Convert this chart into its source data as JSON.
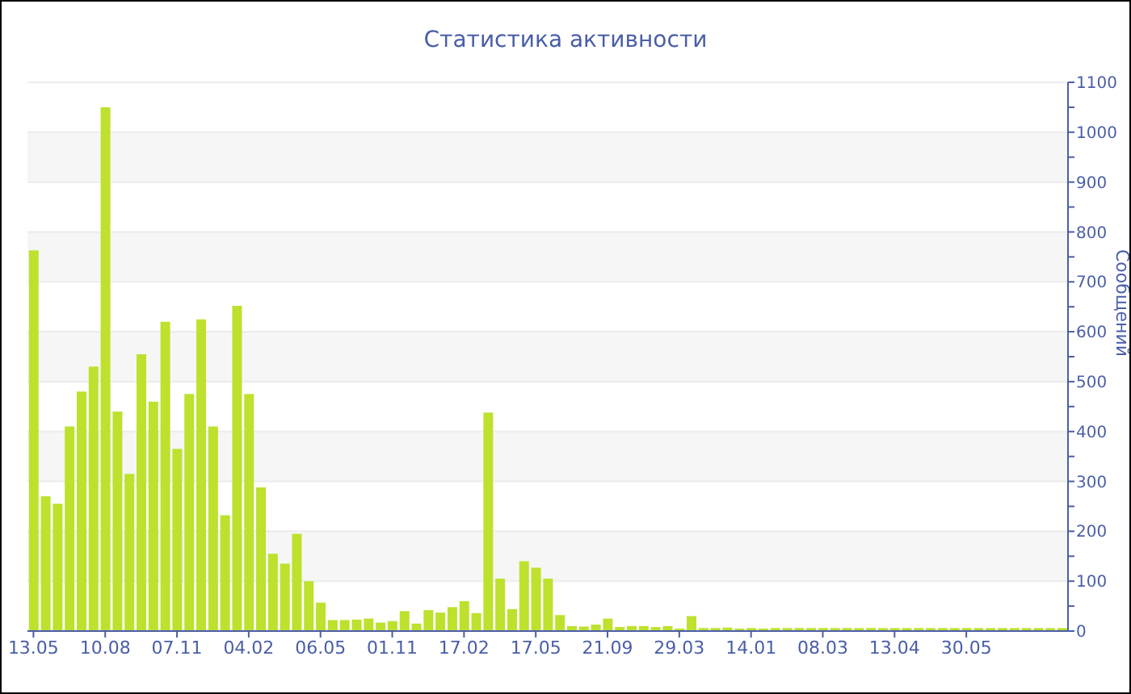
{
  "chart_data": {
    "type": "bar",
    "title": "Статистика активности",
    "ylabel": "Сообщений",
    "categories": [
      "13.05",
      null,
      null,
      null,
      null,
      null,
      "10.08",
      null,
      null,
      null,
      null,
      null,
      "07.11",
      null,
      null,
      null,
      null,
      null,
      "04.02",
      null,
      null,
      null,
      null,
      null,
      "06.05",
      null,
      null,
      null,
      null,
      null,
      "01.11",
      null,
      null,
      null,
      null,
      null,
      "17.02",
      null,
      null,
      null,
      null,
      null,
      "17.05",
      null,
      null,
      null,
      null,
      null,
      "21.09",
      null,
      null,
      null,
      null,
      null,
      "29.03",
      null,
      null,
      null,
      null,
      null,
      "14.01",
      null,
      null,
      null,
      null,
      null,
      "08.03",
      null,
      null,
      null,
      null,
      null,
      "13.04",
      null,
      null,
      null,
      null,
      null,
      "30.05",
      null,
      null,
      null,
      null,
      null,
      null,
      null,
      null
    ],
    "values": [
      763,
      270,
      255,
      410,
      480,
      530,
      1050,
      440,
      315,
      555,
      460,
      620,
      365,
      475,
      625,
      410,
      232,
      652,
      475,
      288,
      155,
      135,
      195,
      100,
      57,
      22,
      22,
      23,
      25,
      17,
      20,
      40,
      15,
      42,
      37,
      48,
      60,
      36,
      438,
      105,
      44,
      140,
      127,
      105,
      32,
      10,
      9,
      13,
      25,
      8,
      10,
      10,
      8,
      10,
      5,
      30,
      6,
      6,
      7,
      5,
      6,
      5,
      6,
      6,
      6,
      6,
      6,
      6,
      6,
      6,
      6,
      6,
      6,
      6,
      6,
      6,
      6,
      6,
      6,
      6,
      6,
      6,
      6,
      6,
      6,
      6,
      6
    ],
    "color": "#bde12d",
    "ylim": [
      0,
      1100
    ],
    "yticks": [
      0,
      {
        "value": 50,
        "label": null
      },
      100,
      {
        "value": 150,
        "label": null
      },
      200,
      {
        "value": 250,
        "label": null
      },
      300,
      {
        "value": 350,
        "label": null
      },
      400,
      {
        "value": 450,
        "label": null
      },
      500,
      {
        "value": 550,
        "label": null
      },
      600,
      {
        "value": 650,
        "label": null
      },
      700,
      {
        "value": 750,
        "label": null
      },
      800,
      {
        "value": 850,
        "label": null
      },
      900,
      {
        "value": 950,
        "label": null
      },
      1000,
      {
        "value": 1050,
        "label": null
      },
      1100
    ],
    "grid": "y"
  }
}
